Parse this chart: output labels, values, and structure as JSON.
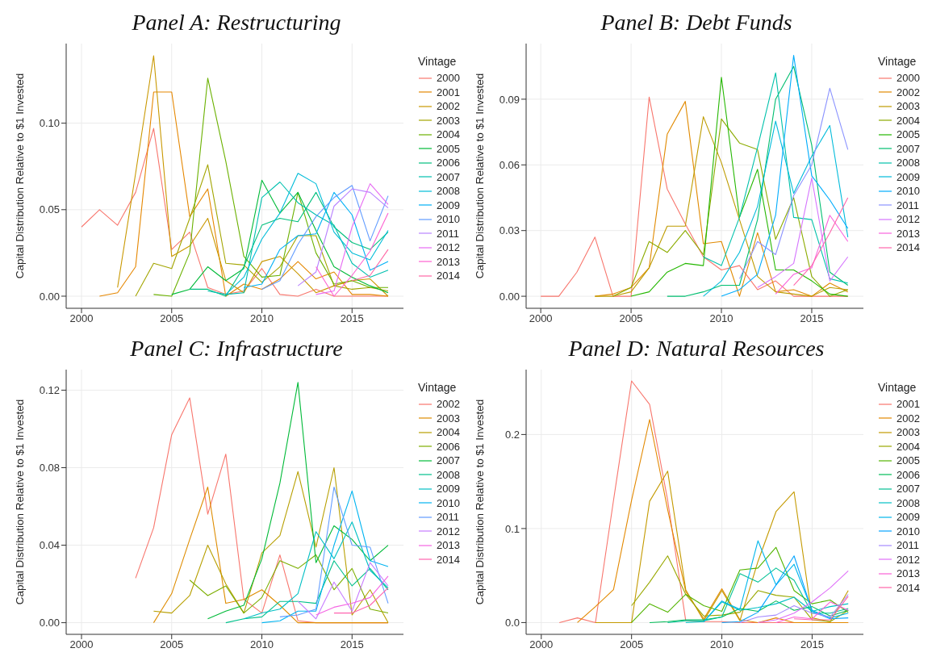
{
  "chart_data": [
    {
      "type": "line",
      "title": "Panel A: Restructuring",
      "ylabel": "Capital Distribution Relative to $1 Invested",
      "legend_title": "Vintage",
      "legend": "right",
      "grid": true,
      "xlim": [
        1999.15,
        2017.85
      ],
      "xticks": [
        2000,
        2005,
        2010,
        2015
      ],
      "ylim": [
        -0.007,
        0.146
      ],
      "yticks": [
        {
          "value": 0,
          "label": "0.00"
        },
        {
          "value": 0.05,
          "label": "0.05"
        },
        {
          "value": 0.1,
          "label": "0.10"
        }
      ],
      "series": [
        {
          "name": "2000",
          "color": "#F8766D",
          "x": [
            2000,
            2001,
            2002,
            2003,
            2004,
            2005,
            2006,
            2007,
            2008,
            2009,
            2010,
            2011,
            2012,
            2013,
            2014,
            2015,
            2016,
            2017
          ],
          "values": [
            0.04,
            0.05,
            0.041,
            0.06,
            0.097,
            0.027,
            0.037,
            0.005,
            0.001,
            0.003,
            0.016,
            0.001,
            0,
            0.004,
            0,
            0,
            0,
            0
          ]
        },
        {
          "name": "2001",
          "color": "#E58700",
          "x": [
            2001,
            2002,
            2003,
            2004,
            2005,
            2006,
            2007,
            2008,
            2009,
            2010,
            2011,
            2012,
            2013,
            2014,
            2015,
            2016,
            2017
          ],
          "values": [
            0,
            0.002,
            0.017,
            0.118,
            0.118,
            0.046,
            0.062,
            0,
            0.007,
            0.004,
            0.01,
            0.02,
            0.01,
            0.014,
            0.001,
            0.001,
            0
          ]
        },
        {
          "name": "2002",
          "color": "#C99800",
          "x": [
            2002,
            2003,
            2004,
            2005,
            2006,
            2007,
            2008,
            2009,
            2010,
            2011,
            2012,
            2013,
            2014,
            2015,
            2016,
            2017
          ],
          "values": [
            0.005,
            0.071,
            0.139,
            0.023,
            0.029,
            0.045,
            0.009,
            0.002,
            0.02,
            0.023,
            0.013,
            0.002,
            0.006,
            0.009,
            0.01,
            0
          ]
        },
        {
          "name": "2003",
          "color": "#A3A500",
          "x": [
            2003,
            2004,
            2005,
            2006,
            2007,
            2008,
            2009,
            2010,
            2011,
            2012,
            2013,
            2014,
            2015,
            2016,
            2017
          ],
          "values": [
            0,
            0.019,
            0.016,
            0.045,
            0.076,
            0.019,
            0.018,
            0.008,
            0.017,
            0.035,
            0.035,
            0.006,
            0.004,
            0.005,
            0.003
          ]
        },
        {
          "name": "2004",
          "color": "#6BB100",
          "x": [
            2004,
            2005,
            2006,
            2007,
            2008,
            2009,
            2010,
            2011,
            2012,
            2013,
            2014,
            2015,
            2016,
            2017
          ],
          "values": [
            0.001,
            0,
            0.025,
            0.126,
            0.078,
            0.023,
            0.011,
            0.012,
            0.06,
            0.025,
            0.007,
            0.009,
            0.005,
            0.005
          ]
        },
        {
          "name": "2005",
          "color": "#00BA38",
          "x": [
            2005,
            2006,
            2007,
            2008,
            2009,
            2010,
            2011,
            2012,
            2013,
            2014,
            2015,
            2016,
            2017
          ],
          "values": [
            0.001,
            0.004,
            0.017,
            0.009,
            0.016,
            0.067,
            0.048,
            0.06,
            0.038,
            0.017,
            0.011,
            0.006,
            0.002
          ]
        },
        {
          "name": "2006",
          "color": "#00BF7D",
          "x": [
            2006,
            2007,
            2008,
            2009,
            2010,
            2011,
            2012,
            2013,
            2014,
            2015,
            2016,
            2017
          ],
          "values": [
            0.004,
            0.004,
            0,
            0.017,
            0.041,
            0.045,
            0.043,
            0.06,
            0.04,
            0.031,
            0.027,
            0.037
          ]
        },
        {
          "name": "2007",
          "color": "#00C0AF",
          "x": [
            2007,
            2008,
            2009,
            2010,
            2011,
            2012,
            2013,
            2014,
            2015,
            2016,
            2017
          ],
          "values": [
            0.003,
            0.001,
            0.002,
            0.057,
            0.066,
            0.054,
            0.047,
            0.041,
            0.019,
            0.011,
            0.015
          ]
        },
        {
          "name": "2008",
          "color": "#00BCD8",
          "x": [
            2008,
            2009,
            2010,
            2011,
            2012,
            2013,
            2014,
            2015,
            2016,
            2017
          ],
          "values": [
            0.001,
            0.011,
            0.033,
            0.048,
            0.071,
            0.065,
            0.037,
            0.025,
            0.021,
            0.038
          ]
        },
        {
          "name": "2009",
          "color": "#00B0F6",
          "x": [
            2009,
            2010,
            2011,
            2012,
            2013,
            2014,
            2015,
            2016,
            2017
          ],
          "values": [
            0.005,
            0.007,
            0.027,
            0.035,
            0.036,
            0.06,
            0.047,
            0.015,
            0.02
          ]
        },
        {
          "name": "2010",
          "color": "#619CFF",
          "x": [
            2010,
            2011,
            2012,
            2013,
            2014,
            2015,
            2016,
            2017
          ],
          "values": [
            0.004,
            0.009,
            0.03,
            0.046,
            0.057,
            0.064,
            0.032,
            0.058
          ]
        },
        {
          "name": "2011",
          "color": "#B983FF",
          "x": [
            2012,
            2013,
            2014,
            2015,
            2016,
            2017
          ],
          "values": [
            0.006,
            0.014,
            0.052,
            0.062,
            0.06,
            0.051
          ]
        },
        {
          "name": "2012",
          "color": "#E76BF3",
          "x": [
            2013,
            2014,
            2015,
            2016,
            2017
          ],
          "values": [
            0.001,
            0.003,
            0.04,
            0.065,
            0.053
          ]
        },
        {
          "name": "2013",
          "color": "#FD61D1",
          "x": [
            2013,
            2014,
            2015,
            2016,
            2017
          ],
          "values": [
            0.017,
            0,
            0.012,
            0.026,
            0.048
          ]
        },
        {
          "name": "2014",
          "color": "#FF67A4",
          "x": [
            2015,
            2016,
            2017
          ],
          "values": [
            0.009,
            0.012,
            0.027
          ]
        }
      ]
    },
    {
      "type": "line",
      "title": "Panel B: Debt Funds",
      "ylabel": "Capital Distribution Relative to $1 Invested",
      "legend_title": "Vintage",
      "legend": "right",
      "grid": true,
      "xlim": [
        1999.19,
        2017.86
      ],
      "xticks": [
        2000,
        2005,
        2010,
        2015
      ],
      "ylim": [
        -0.0055,
        0.1154
      ],
      "yticks": [
        {
          "value": 0,
          "label": "0.00"
        },
        {
          "value": 0.03,
          "label": "0.03"
        },
        {
          "value": 0.06,
          "label": "0.06"
        },
        {
          "value": 0.09,
          "label": "0.09"
        }
      ],
      "series": [
        {
          "name": "2000",
          "color": "#F8766D",
          "x": [
            2000,
            2001,
            2002,
            2003,
            2004,
            2005,
            2006,
            2007,
            2008,
            2009,
            2010,
            2011,
            2012,
            2013,
            2014,
            2015,
            2016,
            2017
          ],
          "values": [
            0,
            0,
            0.011,
            0.027,
            0,
            0,
            0.091,
            0.049,
            0.033,
            0.018,
            0.012,
            0.014,
            0.003,
            0.007,
            0,
            0,
            0,
            0
          ]
        },
        {
          "name": "2002",
          "color": "#E18A00",
          "x": [
            2003,
            2004,
            2005,
            2006,
            2007,
            2008,
            2009,
            2010,
            2011,
            2012,
            2013,
            2014,
            2015,
            2016,
            2017
          ],
          "values": [
            0,
            0.001,
            0.004,
            0.013,
            0.074,
            0.089,
            0.024,
            0.025,
            0,
            0.029,
            0.002,
            0.003,
            0,
            0.006,
            0.002
          ]
        },
        {
          "name": "2003",
          "color": "#BE9C00",
          "x": [
            2003,
            2004,
            2005,
            2006,
            2007,
            2008,
            2009,
            2010,
            2011,
            2012,
            2013,
            2014,
            2015,
            2016,
            2017
          ],
          "values": [
            0,
            0,
            0.002,
            0.013,
            0.032,
            0.032,
            0.082,
            0.061,
            0.035,
            0.009,
            0.002,
            0.001,
            0,
            0.004,
            0.003
          ]
        },
        {
          "name": "2004",
          "color": "#8CAB00",
          "x": [
            2004,
            2005,
            2006,
            2007,
            2008,
            2009,
            2010,
            2011,
            2012,
            2013,
            2014,
            2015,
            2016,
            2017
          ],
          "values": [
            0,
            0.004,
            0.025,
            0.02,
            0.03,
            0.019,
            0.081,
            0.07,
            0.067,
            0.026,
            0.045,
            0.009,
            0,
            0.003
          ]
        },
        {
          "name": "2005",
          "color": "#24B700",
          "x": [
            2005,
            2006,
            2007,
            2008,
            2009,
            2010,
            2011,
            2012,
            2013,
            2014,
            2015,
            2016,
            2017
          ],
          "values": [
            0,
            0.002,
            0.011,
            0.015,
            0.014,
            0.1,
            0.036,
            0.058,
            0.012,
            0.012,
            0.007,
            0.001,
            0
          ]
        },
        {
          "name": "2007",
          "color": "#00BE70",
          "x": [
            2007,
            2008,
            2009,
            2010,
            2011,
            2012,
            2013,
            2014,
            2015,
            2016,
            2017
          ],
          "values": [
            0,
            0,
            0.002,
            0.005,
            0.005,
            0.035,
            0.09,
            0.105,
            0.069,
            0.011,
            0.005
          ]
        },
        {
          "name": "2008",
          "color": "#00C1AB",
          "x": [
            2009,
            2010,
            2011,
            2012,
            2013,
            2014,
            2015,
            2016,
            2017
          ],
          "values": [
            0.018,
            0.014,
            0.036,
            0.068,
            0.102,
            0.036,
            0.035,
            0.008,
            0.006
          ]
        },
        {
          "name": "2009",
          "color": "#00BBDA",
          "x": [
            2009,
            2010,
            2011,
            2012,
            2013,
            2014,
            2015,
            2016,
            2017
          ],
          "values": [
            0,
            0.007,
            0.02,
            0.041,
            0.08,
            0.047,
            0.064,
            0.078,
            0.027
          ]
        },
        {
          "name": "2010",
          "color": "#00ACFC",
          "x": [
            2010,
            2011,
            2012,
            2013,
            2014,
            2015,
            2016,
            2017
          ],
          "values": [
            0,
            0.003,
            0.01,
            0.037,
            0.11,
            0.055,
            0.044,
            0.031
          ]
        },
        {
          "name": "2011",
          "color": "#8B93FF",
          "x": [
            2011,
            2012,
            2013,
            2014,
            2015,
            2016,
            2017
          ],
          "values": [
            0.008,
            0.025,
            0.019,
            0.046,
            0.06,
            0.095,
            0.067
          ]
        },
        {
          "name": "2012",
          "color": "#D575FE",
          "x": [
            2012,
            2013,
            2014,
            2015,
            2016,
            2017
          ],
          "values": [
            0.004,
            0.009,
            0.015,
            0.054,
            0.007,
            0.018
          ]
        },
        {
          "name": "2013",
          "color": "#F962DD",
          "x": [
            2013,
            2014,
            2015,
            2016,
            2017
          ],
          "values": [
            0.001,
            0.01,
            0.013,
            0.037,
            0.025
          ]
        },
        {
          "name": "2014",
          "color": "#FF65AC",
          "x": [
            2014,
            2015,
            2016,
            2017
          ],
          "values": [
            0.005,
            0.014,
            0.029,
            0.045
          ]
        }
      ]
    },
    {
      "type": "line",
      "title": "Panel C: Infrastructure",
      "ylabel": "Capital Distribution Relative to $1 Invested",
      "legend_title": "Vintage",
      "legend": "right",
      "grid": true,
      "xlim": [
        1999.15,
        2017.85
      ],
      "xticks": [
        2000,
        2005,
        2010,
        2015
      ],
      "ylim": [
        -0.006,
        0.1306
      ],
      "yticks": [
        {
          "value": 0,
          "label": "0.00"
        },
        {
          "value": 0.04,
          "label": "0.04"
        },
        {
          "value": 0.08,
          "label": "0.08"
        },
        {
          "value": 0.12,
          "label": "0.12"
        }
      ],
      "series": [
        {
          "name": "2002",
          "color": "#F8766D",
          "x": [
            2003,
            2004,
            2005,
            2006,
            2007,
            2008,
            2009,
            2010,
            2011,
            2012,
            2013,
            2014,
            2015,
            2016,
            2017
          ],
          "values": [
            0.023,
            0.049,
            0.097,
            0.116,
            0.056,
            0.087,
            0.012,
            0.005,
            0.035,
            0.001,
            0,
            0,
            0,
            0,
            0
          ]
        },
        {
          "name": "2003",
          "color": "#DE8C00",
          "x": [
            2004,
            2005,
            2006,
            2007,
            2008,
            2009,
            2010,
            2011,
            2012,
            2013,
            2014,
            2015,
            2016,
            2017
          ],
          "values": [
            0,
            0.015,
            0.043,
            0.07,
            0.01,
            0.012,
            0.017,
            0.009,
            0,
            0,
            0,
            0,
            0,
            0
          ]
        },
        {
          "name": "2004",
          "color": "#B79F00",
          "x": [
            2004,
            2005,
            2006,
            2007,
            2008,
            2009,
            2010,
            2011,
            2012,
            2013,
            2014,
            2015,
            2016,
            2017
          ],
          "values": [
            0.006,
            0.005,
            0.014,
            0.04,
            0.02,
            0.005,
            0.036,
            0.045,
            0.078,
            0.039,
            0.08,
            0.004,
            0.017,
            0
          ]
        },
        {
          "name": "2006",
          "color": "#7CAE00",
          "x": [
            2006,
            2007,
            2008,
            2009,
            2010,
            2011,
            2012,
            2013,
            2014,
            2015,
            2016,
            2017
          ],
          "values": [
            0.022,
            0.014,
            0.019,
            0.005,
            0.013,
            0.032,
            0.028,
            0.035,
            0.017,
            0.028,
            0.007,
            0.005
          ]
        },
        {
          "name": "2007",
          "color": "#00BA38",
          "x": [
            2007,
            2008,
            2009,
            2010,
            2011,
            2012,
            2013,
            2014,
            2015,
            2016,
            2017
          ],
          "values": [
            0.002,
            0.006,
            0.009,
            0.033,
            0.072,
            0.124,
            0.031,
            0.05,
            0.043,
            0.032,
            0.04
          ]
        },
        {
          "name": "2008",
          "color": "#00C08B",
          "x": [
            2008,
            2009,
            2010,
            2011,
            2012,
            2013,
            2014,
            2015,
            2016,
            2017
          ],
          "values": [
            0,
            0.002,
            0.003,
            0.011,
            0.011,
            0.01,
            0.032,
            0.019,
            0.028,
            0.017
          ]
        },
        {
          "name": "2009",
          "color": "#00BFC4",
          "x": [
            2009,
            2010,
            2011,
            2012,
            2013,
            2014,
            2015,
            2016,
            2017
          ],
          "values": [
            0.002,
            0.005,
            0.007,
            0.015,
            0.047,
            0.033,
            0.052,
            0.027,
            0.018
          ]
        },
        {
          "name": "2010",
          "color": "#00B4F0",
          "x": [
            2010,
            2011,
            2012,
            2013,
            2014,
            2015,
            2016,
            2017
          ],
          "values": [
            0,
            0.001,
            0.006,
            0.006,
            0.04,
            0.068,
            0.032,
            0.029
          ]
        },
        {
          "name": "2011",
          "color": "#619CFF",
          "x": [
            2011,
            2012,
            2013,
            2014,
            2015,
            2016,
            2017
          ],
          "values": [
            0.003,
            0.004,
            0.007,
            0.07,
            0.04,
            0.039,
            0.01
          ]
        },
        {
          "name": "2012",
          "color": "#C77CFF",
          "x": [
            2012,
            2013,
            2014,
            2015,
            2016,
            2017
          ],
          "values": [
            0.011,
            0.002,
            0.021,
            0.006,
            0.031,
            0.019
          ]
        },
        {
          "name": "2013",
          "color": "#F564E3",
          "x": [
            2013,
            2014,
            2015,
            2016,
            2017
          ],
          "values": [
            0.004,
            0.008,
            0.01,
            0.013,
            0.024
          ]
        },
        {
          "name": "2014",
          "color": "#FF64B0",
          "x": [
            2014,
            2015,
            2016,
            2017
          ],
          "values": [
            0.005,
            0.005,
            0.009,
            0.018
          ]
        }
      ]
    },
    {
      "type": "line",
      "title": "Panel D: Natural Resources",
      "ylabel": "Capital Distribution Relative to $1 Invested",
      "legend_title": "Vintage",
      "legend": "right",
      "grid": true,
      "xlim": [
        1999.16,
        2017.84
      ],
      "xticks": [
        2000,
        2005,
        2010,
        2015
      ],
      "ylim": [
        -0.0125,
        0.269
      ],
      "yticks": [
        {
          "value": 0,
          "label": "0.0"
        },
        {
          "value": 0.1,
          "label": "0.1"
        },
        {
          "value": 0.2,
          "label": "0.2"
        }
      ],
      "series": [
        {
          "name": "2001",
          "color": "#F8766D",
          "x": [
            2001,
            2002,
            2003,
            2004,
            2005,
            2006,
            2007,
            2008,
            2009,
            2010,
            2011,
            2012,
            2013,
            2014,
            2015,
            2016,
            2017
          ],
          "values": [
            0,
            0.005,
            0,
            0.13,
            0.257,
            0.232,
            0.13,
            0.002,
            0.001,
            0.001,
            0,
            0,
            0,
            0,
            0,
            0,
            0
          ]
        },
        {
          "name": "2002",
          "color": "#E38900",
          "x": [
            2002,
            2003,
            2004,
            2005,
            2006,
            2007,
            2008,
            2009,
            2010,
            2011,
            2012,
            2013,
            2014,
            2015,
            2016,
            2017
          ],
          "values": [
            0,
            0.017,
            0.035,
            0.13,
            0.216,
            0.12,
            0.033,
            0.004,
            0.036,
            0.003,
            0,
            0.005,
            0,
            0,
            0,
            0
          ]
        },
        {
          "name": "2003",
          "color": "#C49A00",
          "x": [
            2003,
            2004,
            2005,
            2006,
            2007,
            2008,
            2009,
            2010,
            2011,
            2012,
            2013,
            2014,
            2015,
            2016,
            2017
          ],
          "values": [
            0,
            0,
            0,
            0.129,
            0.161,
            0.035,
            0.002,
            0.034,
            0.002,
            0.065,
            0.118,
            0.139,
            0.005,
            0.001,
            0.034
          ]
        },
        {
          "name": "2004",
          "color": "#99A800",
          "x": [
            2005,
            2006,
            2007,
            2008,
            2009,
            2010,
            2011,
            2012,
            2013,
            2014,
            2015,
            2016,
            2017
          ],
          "values": [
            0.018,
            0.043,
            0.071,
            0.03,
            0.007,
            0.008,
            0.011,
            0.034,
            0.029,
            0.027,
            0.003,
            0.001,
            0.013
          ]
        },
        {
          "name": "2005",
          "color": "#53B400",
          "x": [
            2005,
            2006,
            2007,
            2008,
            2009,
            2010,
            2011,
            2012,
            2013,
            2014,
            2015,
            2016,
            2017
          ],
          "values": [
            0,
            0.02,
            0.011,
            0.03,
            0.018,
            0.012,
            0.056,
            0.058,
            0.08,
            0.034,
            0.02,
            0.024,
            0.011
          ]
        },
        {
          "name": "2006",
          "color": "#00BC56",
          "x": [
            2006,
            2007,
            2008,
            2009,
            2010,
            2011,
            2012,
            2013,
            2014,
            2015,
            2016,
            2017
          ],
          "values": [
            0,
            0.001,
            0.003,
            0.003,
            0.006,
            0.015,
            0.012,
            0.023,
            0.013,
            0.017,
            0.007,
            0.013
          ]
        },
        {
          "name": "2007",
          "color": "#00C094",
          "x": [
            2007,
            2008,
            2009,
            2010,
            2011,
            2012,
            2013,
            2014,
            2015,
            2016,
            2017
          ],
          "values": [
            0,
            0.002,
            0.002,
            0.006,
            0.052,
            0.043,
            0.058,
            0.045,
            0.01,
            0.01,
            0.015
          ]
        },
        {
          "name": "2008",
          "color": "#00BFC4",
          "x": [
            2008,
            2009,
            2010,
            2011,
            2012,
            2013,
            2014,
            2015,
            2016,
            2017
          ],
          "values": [
            0,
            0.001,
            0.022,
            0.013,
            0.016,
            0.02,
            0.027,
            0.012,
            0.017,
            0.02
          ]
        },
        {
          "name": "2009",
          "color": "#00B6EB",
          "x": [
            2009,
            2010,
            2011,
            2012,
            2013,
            2014,
            2015,
            2016,
            2017
          ],
          "values": [
            0.001,
            0.023,
            0.014,
            0.087,
            0.04,
            0.062,
            0.013,
            0.005,
            0.01
          ]
        },
        {
          "name": "2010",
          "color": "#06A4FF",
          "x": [
            2010,
            2011,
            2012,
            2013,
            2014,
            2015,
            2016,
            2017
          ],
          "values": [
            0,
            0.001,
            0.011,
            0.04,
            0.071,
            0.012,
            0.004,
            0.005
          ]
        },
        {
          "name": "2011",
          "color": "#A58AFF",
          "x": [
            2011,
            2012,
            2013,
            2014,
            2015,
            2016,
            2017
          ],
          "values": [
            0,
            0.006,
            0.008,
            0.018,
            0.01,
            0.006,
            0.03
          ]
        },
        {
          "name": "2012",
          "color": "#DF70F8",
          "x": [
            2012,
            2013,
            2014,
            2015,
            2016,
            2017
          ],
          "values": [
            0,
            0.003,
            0.01,
            0.022,
            0.037,
            0.055
          ]
        },
        {
          "name": "2013",
          "color": "#FB61D7",
          "x": [
            2013,
            2014,
            2015,
            2016,
            2017
          ],
          "values": [
            0,
            0.006,
            0.004,
            0.022,
            0.013
          ]
        },
        {
          "name": "2014",
          "color": "#FF66A8",
          "x": [
            2014,
            2015,
            2016,
            2017
          ],
          "values": [
            0.004,
            0.003,
            0.003,
            0.028
          ]
        }
      ]
    }
  ]
}
